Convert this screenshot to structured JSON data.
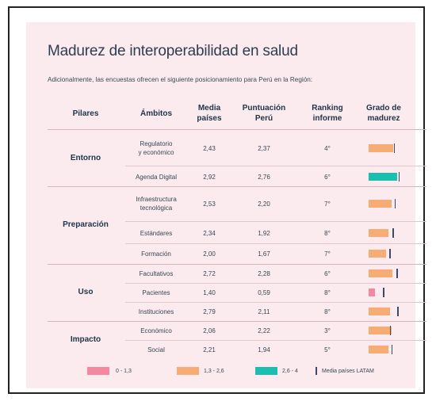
{
  "title": "Madurez de interoperabilidad en salud",
  "subtitle": "Adicionalmente, las encuestas ofrecen el siguiente posicionamiento para Perú en la Región:",
  "headers": {
    "pilares": "Pilares",
    "ambitos": "Ámbitos",
    "media": "Media\npaíses",
    "puntuacion": "Puntuación\nPerú",
    "ranking": "Ranking\ninforme",
    "grado": "Grado de\nmadurez"
  },
  "pilares": [
    {
      "name": "Entorno",
      "rows": [
        0,
        1
      ]
    },
    {
      "name": "Preparación",
      "rows": [
        2,
        3,
        4
      ]
    },
    {
      "name": "Uso",
      "rows": [
        5,
        6,
        7
      ]
    },
    {
      "name": "Impacto",
      "rows": [
        8,
        9
      ]
    }
  ],
  "rows": [
    {
      "ambito": "Regulatorio\ny económico",
      "media": "2,43",
      "puntuacion": "2,37",
      "ranking": "4°",
      "peru_value": 2.37,
      "latam_value": 2.43
    },
    {
      "ambito": "Agenda Digital",
      "media": "2,92",
      "puntuacion": "2,76",
      "ranking": "6°",
      "peru_value": 2.76,
      "latam_value": 2.92
    },
    {
      "ambito": "Infraestructura\ntecnológica",
      "media": "2,53",
      "puntuacion": "2,20",
      "ranking": "7°",
      "peru_value": 2.2,
      "latam_value": 2.53
    },
    {
      "ambito": "Estándares",
      "media": "2,34",
      "puntuacion": "1,92",
      "ranking": "8°",
      "peru_value": 1.92,
      "latam_value": 2.34
    },
    {
      "ambito": "Formación",
      "media": "2,00",
      "puntuacion": "1,67",
      "ranking": "7°",
      "peru_value": 1.67,
      "latam_value": 2.0
    },
    {
      "ambito": "Facultativos",
      "media": "2,72",
      "puntuacion": "2,28",
      "ranking": "6°",
      "peru_value": 2.28,
      "latam_value": 2.72
    },
    {
      "ambito": "Pacientes",
      "media": "1,40",
      "puntuacion": "0,59",
      "ranking": "8°",
      "peru_value": 0.59,
      "latam_value": 1.4
    },
    {
      "ambito": "Instituciones",
      "media": "2,79",
      "puntuacion": "2,11",
      "ranking": "8°",
      "peru_value": 2.11,
      "latam_value": 2.79
    },
    {
      "ambito": "Económico",
      "media": "2,06",
      "puntuacion": "2,22",
      "ranking": "3°",
      "peru_value": 2.22,
      "latam_value": 2.06
    },
    {
      "ambito": "Social",
      "media": "2,21",
      "puntuacion": "1,94",
      "ranking": "5°",
      "peru_value": 1.94,
      "latam_value": 2.21
    }
  ],
  "scale_max": 4,
  "colors": {
    "low": "#f4889e",
    "mid": "#f7ac74",
    "high": "#1bbfb0",
    "latam_marker": "#3a4a6a"
  },
  "legend": [
    {
      "label": "0 - 1,3",
      "color_key": "low"
    },
    {
      "label": "1,3 - 2,6",
      "color_key": "mid"
    },
    {
      "label": "2,6 - 4",
      "color_key": "high"
    }
  ],
  "legend_marker_label": "Media países LATAM"
}
